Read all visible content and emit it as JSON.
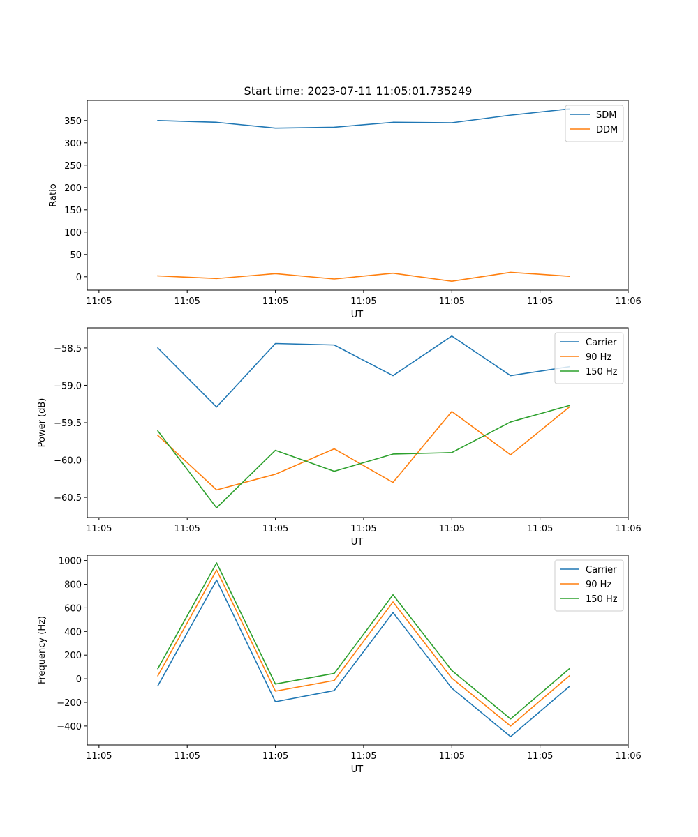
{
  "figure_title": "Start time: 2023-07-11 11:05:01.735249",
  "chart_data": [
    {
      "type": "line",
      "title": "Start time: 2023-07-11 11:05:01.735249",
      "xlabel": "UT",
      "ylabel": "Ratio",
      "x_ticks": [
        "11:05",
        "11:05",
        "11:05",
        "11:05",
        "11:05",
        "11:05",
        "11:06"
      ],
      "xlim": [
        -1.2,
        8
      ],
      "ylim": [
        -30,
        395
      ],
      "y_ticks": [
        0,
        50,
        100,
        150,
        200,
        250,
        300,
        350
      ],
      "y_tick_labels": [
        "0",
        "50",
        "100",
        "150",
        "200",
        "250",
        "300",
        "350"
      ],
      "x": [
        0,
        1,
        2,
        3,
        4,
        5,
        6,
        7
      ],
      "legend_position": "top-right",
      "series": [
        {
          "name": "SDM",
          "color": "#1f77b4",
          "values": [
            350,
            346,
            333,
            335,
            346,
            345,
            362,
            376
          ]
        },
        {
          "name": "DDM",
          "color": "#ff7f0e",
          "values": [
            2,
            -4,
            7,
            -5,
            8,
            -10,
            10,
            1
          ]
        }
      ]
    },
    {
      "type": "line",
      "title": "",
      "xlabel": "UT",
      "ylabel": "Power (dB)",
      "x_ticks": [
        "11:05",
        "11:05",
        "11:05",
        "11:05",
        "11:05",
        "11:05",
        "11:06"
      ],
      "xlim": [
        -1.2,
        8
      ],
      "ylim": [
        -60.77,
        -58.23
      ],
      "y_ticks": [
        -60.5,
        -60.0,
        -59.5,
        -59.0,
        -58.5
      ],
      "y_tick_labels": [
        "−60.5",
        "−60.0",
        "−59.5",
        "−59.0",
        "−58.5"
      ],
      "x": [
        0,
        1,
        2,
        3,
        4,
        5,
        6,
        7
      ],
      "legend_position": "top-right",
      "series": [
        {
          "name": "Carrier",
          "color": "#1f77b4",
          "values": [
            -58.5,
            -59.29,
            -58.44,
            -58.46,
            -58.87,
            -58.34,
            -58.87,
            -58.75
          ]
        },
        {
          "name": "90 Hz",
          "color": "#ff7f0e",
          "values": [
            -59.67,
            -60.4,
            -60.19,
            -59.85,
            -60.3,
            -59.35,
            -59.93,
            -59.29
          ]
        },
        {
          "name": "150 Hz",
          "color": "#2ca02c",
          "values": [
            -59.61,
            -60.64,
            -59.87,
            -60.15,
            -59.92,
            -59.9,
            -59.49,
            -59.27
          ]
        }
      ]
    },
    {
      "type": "line",
      "title": "",
      "xlabel": "UT",
      "ylabel": "Frequency (Hz)",
      "x_ticks": [
        "11:05",
        "11:05",
        "11:05",
        "11:05",
        "11:05",
        "11:05",
        "11:06"
      ],
      "xlim": [
        -1.2,
        8
      ],
      "ylim": [
        -560,
        1045
      ],
      "y_ticks": [
        -400,
        -200,
        0,
        200,
        400,
        600,
        800,
        1000
      ],
      "y_tick_labels": [
        "−400",
        "−200",
        "0",
        "200",
        "400",
        "600",
        "800",
        "1000"
      ],
      "x": [
        0,
        1,
        2,
        3,
        4,
        5,
        6,
        7
      ],
      "legend_position": "top-right",
      "series": [
        {
          "name": "Carrier",
          "color": "#1f77b4",
          "values": [
            -60,
            835,
            -195,
            -100,
            560,
            -80,
            -490,
            -65
          ]
        },
        {
          "name": "90 Hz",
          "color": "#ff7f0e",
          "values": [
            25,
            920,
            -105,
            -15,
            650,
            5,
            -400,
            25
          ]
        },
        {
          "name": "150 Hz",
          "color": "#2ca02c",
          "values": [
            85,
            980,
            -45,
            45,
            710,
            70,
            -340,
            85
          ]
        }
      ]
    }
  ]
}
